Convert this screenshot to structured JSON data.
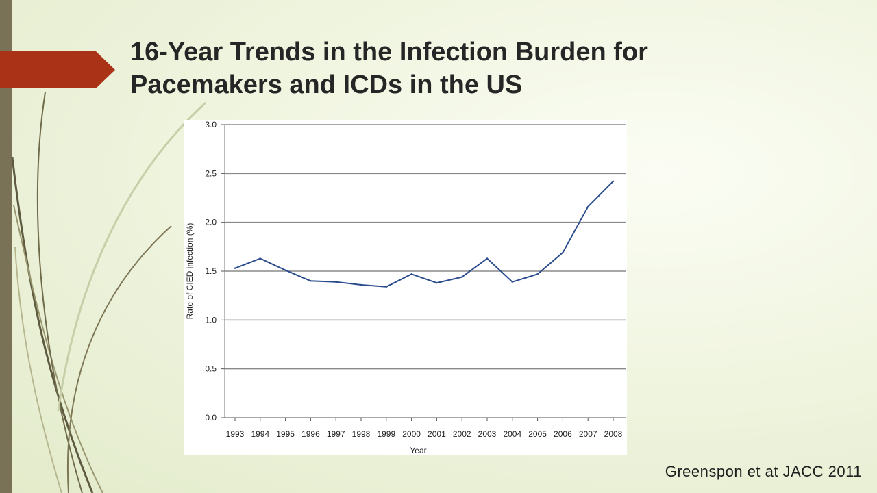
{
  "slide": {
    "title_line1": "16-Year Trends in the Infection Burden for",
    "title_line2": "Pacemakers and ICDs in the US",
    "citation": "Greenspon et at JACC 2011",
    "colors": {
      "accent": "#a93217",
      "left_bar": "#7a7257",
      "line": "#2a4b8d"
    }
  },
  "chart_data": {
    "type": "line",
    "title": "",
    "xlabel": "Year",
    "ylabel": "Rate of CIED infection (%)",
    "categories": [
      "1993",
      "1994",
      "1995",
      "1996",
      "1997",
      "1998",
      "1999",
      "2000",
      "2001",
      "2002",
      "2003",
      "2004",
      "2005",
      "2006",
      "2007",
      "2008"
    ],
    "series": [
      {
        "values": [
          1.53,
          1.63,
          1.51,
          1.4,
          1.39,
          1.36,
          1.34,
          1.47,
          1.38,
          1.44,
          1.63,
          1.39,
          1.47,
          1.69,
          2.16,
          2.42
        ]
      }
    ],
    "yticks": [
      "0.0",
      "0.5",
      "1.0",
      "1.5",
      "2.0",
      "2.5",
      "3.0"
    ],
    "ylim": [
      0,
      3.0
    ],
    "grid": true
  }
}
